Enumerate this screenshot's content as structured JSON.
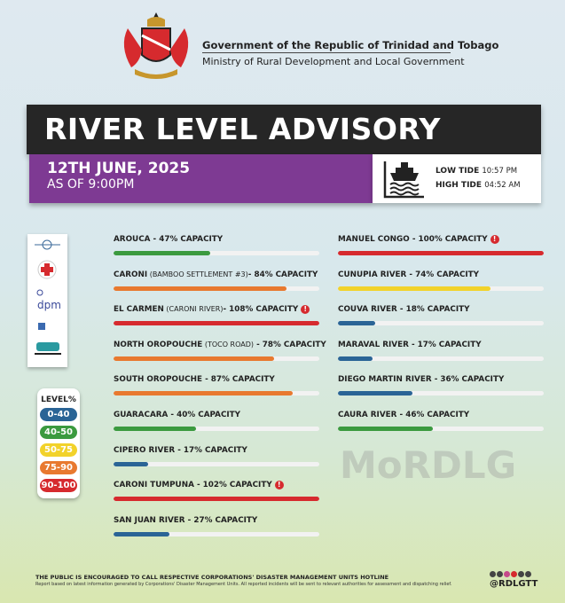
{
  "header": {
    "line1": "Government of the Republic of Trinidad and Tobago",
    "line2": "Ministry of Rural Development and Local Government"
  },
  "banner": {
    "title": "RIVER LEVEL ADVISORY"
  },
  "date": {
    "date": "12TH JUNE, 2025",
    "as_of": "AS OF 9:00PM"
  },
  "tides": {
    "icon": "ship-on-waves-icon",
    "low_label": "LOW TIDE",
    "low_time": "10:57 PM",
    "high_label": "HIGH TIDE",
    "high_time": "04:52 AM"
  },
  "legend": {
    "title": "LEVEL%",
    "ranges": [
      {
        "label": "0-40",
        "color": "#2a6496"
      },
      {
        "label": "40-50",
        "color": "#3b9a3f"
      },
      {
        "label": "50-75",
        "color": "#f2d22a"
      },
      {
        "label": "75-90",
        "color": "#e8792f"
      },
      {
        "label": "90-100",
        "color": "#d62a2e"
      }
    ]
  },
  "chart_data": {
    "type": "bar",
    "unit": "% capacity",
    "left": [
      {
        "name": "AROUCA",
        "note": "",
        "label": " - 47% CAPACITY",
        "value": 47,
        "color": "#3b9a3f",
        "warning": false
      },
      {
        "name": "CARONI",
        "note": " (BAMBOO SETTLEMENT #3)",
        "label": "- 84% CAPACITY",
        "value": 84,
        "color": "#e8792f",
        "warning": false
      },
      {
        "name": "EL CARMEN",
        "note": " (CARONI RIVER)",
        "label": "- 108% CAPACITY",
        "value": 108,
        "color": "#d62a2e",
        "warning": true
      },
      {
        "name": "NORTH OROPOUCHE",
        "note": " (TOCO ROAD)",
        "label": " - 78% CAPACITY",
        "value": 78,
        "color": "#e8792f",
        "warning": false
      },
      {
        "name": "SOUTH OROPOUCHE",
        "note": "",
        "label": " - 87% CAPACITY",
        "value": 87,
        "color": "#e8792f",
        "warning": false
      },
      {
        "name": "GUARACARA",
        "note": "",
        "label": " - 40% CAPACITY",
        "value": 40,
        "color": "#3b9a3f",
        "warning": false
      },
      {
        "name": "CIPERO RIVER",
        "note": "",
        "label": " - 17% CAPACITY",
        "value": 17,
        "color": "#2a6496",
        "warning": false
      },
      {
        "name": "CARONI TUMPUNA",
        "note": "",
        "label": " - 102% CAPACITY",
        "value": 102,
        "color": "#d62a2e",
        "warning": true
      },
      {
        "name": "SAN JUAN RIVER",
        "note": "",
        "label": " - 27% CAPACITY",
        "value": 27,
        "color": "#2a6496",
        "warning": false
      }
    ],
    "right": [
      {
        "name": "MANUEL CONGO",
        "note": "",
        "label": " - 100% CAPACITY",
        "value": 100,
        "color": "#d62a2e",
        "warning": true
      },
      {
        "name": "CUNUPIA RIVER",
        "note": "",
        "label": " - 74% CAPACITY",
        "value": 74,
        "color": "#f2d22a",
        "warning": false
      },
      {
        "name": "COUVA RIVER",
        "note": "",
        "label": " - 18% CAPACITY",
        "value": 18,
        "color": "#2a6496",
        "warning": false
      },
      {
        "name": "MARAVAL RIVER",
        "note": "",
        "label": " - 17% CAPACITY",
        "value": 17,
        "color": "#2a6496",
        "warning": false
      },
      {
        "name": "DIEGO MARTIN RIVER",
        "note": "",
        "label": " - 36% CAPACITY",
        "value": 36,
        "color": "#2a6496",
        "warning": false
      },
      {
        "name": "CAURA RIVER",
        "note": "",
        "label": " - 46% CAPACITY",
        "value": 46,
        "color": "#3b9a3f",
        "warning": false
      }
    ]
  },
  "watermark": "MoRDLG",
  "footer": {
    "line1": "THE PUBLIC IS ENCOURAGED TO CALL RESPECTIVE CORPORATIONS' DISASTER MANAGEMENT UNITS HOTLINE",
    "line2": "Report based on latest information generated by Corporations'  Disaster Management Units. All reported incidents will be sent to relevant authorities for assessment and dispatching relief.",
    "handle": "@RDLGTT"
  }
}
